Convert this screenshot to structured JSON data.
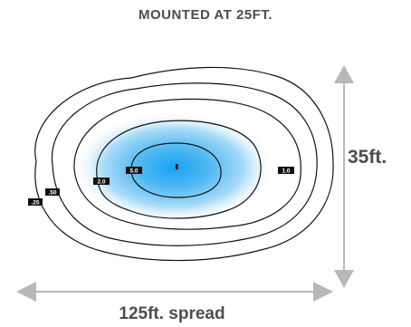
{
  "title": "MOUNTED AT 25FT.",
  "height_label": "35ft.",
  "spread_label": "125ft. spread",
  "contour_labels": [
    ".25",
    ".50",
    "2.0",
    "5.0",
    "1.0"
  ],
  "colors": {
    "text": "#4d4d4d",
    "arrow": "#b8b8b8",
    "core": "#1aa3f0",
    "contour": "#111111",
    "tag_bg": "#111111",
    "tag_text": "#ffffff"
  }
}
